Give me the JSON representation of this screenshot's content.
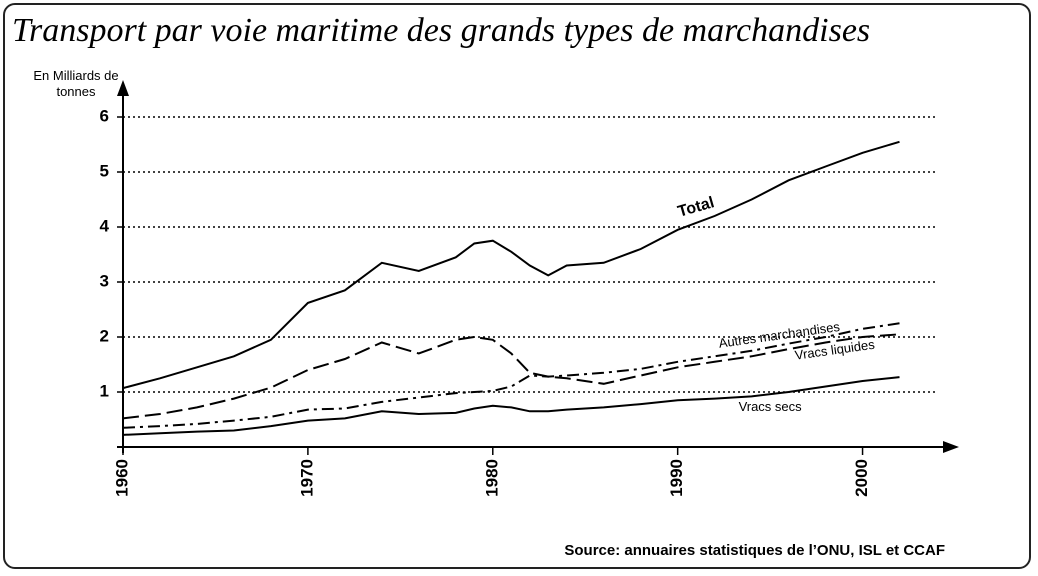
{
  "chart_data": {
    "type": "line",
    "title": "Transport par voie maritime des grands types de marchandises",
    "y_label": "En Milliards de tonnes",
    "source": "Source: annuaires statistiques de l’ONU, ISL et CCAF",
    "x": [
      1960,
      1962,
      1964,
      1966,
      1968,
      1970,
      1972,
      1974,
      1976,
      1978,
      1979,
      1980,
      1981,
      1982,
      1983,
      1984,
      1986,
      1988,
      1990,
      1992,
      1994,
      1996,
      1998,
      2000,
      2002
    ],
    "series": [
      {
        "name": "Total",
        "color": "#000000",
        "style": "solid",
        "values": [
          1.07,
          1.25,
          1.45,
          1.65,
          1.95,
          2.62,
          2.85,
          3.35,
          3.2,
          3.45,
          3.7,
          3.75,
          3.55,
          3.3,
          3.12,
          3.3,
          3.35,
          3.6,
          3.95,
          4.2,
          4.5,
          4.85,
          5.1,
          5.35,
          5.55
        ]
      },
      {
        "name": "Autres marchandises",
        "color": "#000000",
        "style": "dashdot",
        "values": [
          0.35,
          0.38,
          0.42,
          0.48,
          0.55,
          0.68,
          0.7,
          0.82,
          0.9,
          0.98,
          1.0,
          1.02,
          1.1,
          1.3,
          1.28,
          1.3,
          1.35,
          1.42,
          1.55,
          1.65,
          1.75,
          1.88,
          2.0,
          2.15,
          2.25
        ]
      },
      {
        "name": "Vracs liquides",
        "color": "#000000",
        "style": "dash",
        "values": [
          0.52,
          0.6,
          0.72,
          0.88,
          1.08,
          1.4,
          1.6,
          1.9,
          1.7,
          1.95,
          2.0,
          1.95,
          1.7,
          1.35,
          1.28,
          1.25,
          1.15,
          1.3,
          1.45,
          1.55,
          1.65,
          1.78,
          1.9,
          2.0,
          2.05
        ]
      },
      {
        "name": "Vracs secs",
        "color": "#000000",
        "style": "solid",
        "values": [
          0.22,
          0.25,
          0.28,
          0.3,
          0.38,
          0.48,
          0.52,
          0.65,
          0.6,
          0.62,
          0.7,
          0.75,
          0.72,
          0.65,
          0.65,
          0.68,
          0.72,
          0.78,
          0.85,
          0.88,
          0.92,
          1.0,
          1.1,
          1.2,
          1.27
        ]
      }
    ],
    "xlim": [
      1960,
      2005
    ],
    "ylim": [
      0,
      6.6
    ],
    "xticks": [
      1960,
      1970,
      1980,
      1990,
      2000
    ],
    "yticks": [
      1,
      2,
      3,
      4,
      5,
      6
    ],
    "grid": true
  }
}
